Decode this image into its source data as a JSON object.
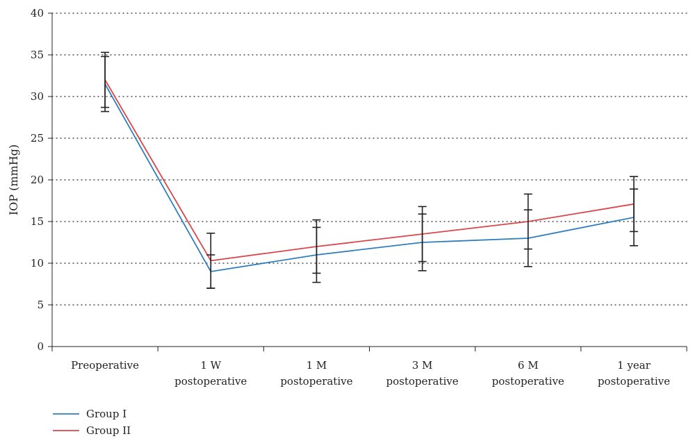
{
  "chart_data": {
    "type": "line",
    "title": "",
    "xlabel": "",
    "ylabel": "IOP (mmHg)",
    "ylim": [
      0,
      40
    ],
    "yticks": [
      0,
      5,
      10,
      15,
      20,
      25,
      30,
      35,
      40
    ],
    "grid": "horizontal dotted",
    "legend_position": "bottom-left",
    "categories": [
      [
        "Preoperative"
      ],
      [
        "1 W",
        "postoperative"
      ],
      [
        "1 M",
        "postoperative"
      ],
      [
        "3 M",
        "postoperative"
      ],
      [
        "6 M",
        "postoperative"
      ],
      [
        "1 year",
        "postoperative"
      ]
    ],
    "series": [
      {
        "name": "Group I",
        "color": "#2e7ebf",
        "values": [
          31.5,
          9.0,
          11.0,
          12.5,
          13.0,
          15.5
        ],
        "error": [
          3.3,
          2.0,
          3.3,
          3.4,
          3.4,
          3.4
        ]
      },
      {
        "name": "Group II",
        "color": "#d94548",
        "values": [
          32.0,
          10.3,
          12.0,
          13.5,
          15.0,
          17.1
        ],
        "error": [
          3.3,
          3.3,
          3.2,
          3.3,
          3.3,
          3.3
        ]
      }
    ]
  }
}
